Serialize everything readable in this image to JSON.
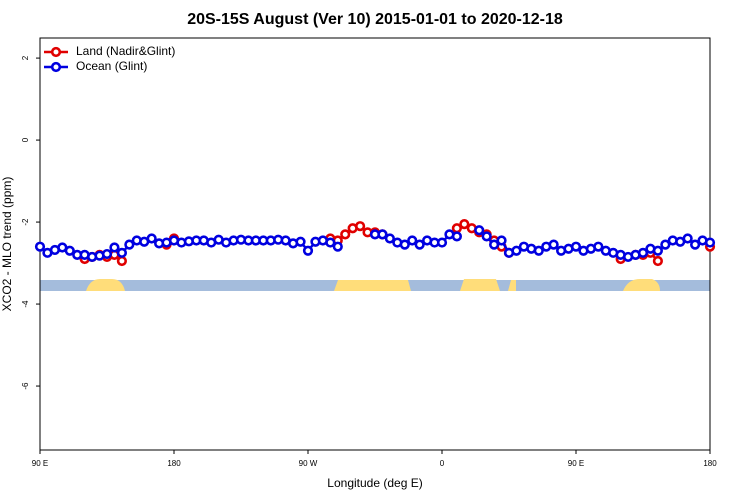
{
  "chart_data": {
    "type": "line",
    "title": "20S-15S August (Ver 10)   2015-01-01 to 2020-12-18",
    "xlabel": "Longitude (deg E)",
    "ylabel": "XCO2 - MLO trend (ppm)",
    "x": [
      90,
      95,
      100,
      105,
      110,
      115,
      120,
      125,
      130,
      135,
      140,
      145,
      150,
      155,
      160,
      165,
      170,
      175,
      180,
      185,
      190,
      195,
      200,
      205,
      210,
      215,
      220,
      225,
      230,
      235,
      240,
      245,
      250,
      255,
      260,
      265,
      270,
      275,
      280,
      285,
      290,
      295,
      300,
      305,
      310,
      315,
      320,
      325,
      330,
      335,
      340,
      345,
      350,
      355,
      360,
      365,
      370,
      375,
      380,
      385,
      390,
      395,
      400,
      405,
      410,
      415,
      420,
      425,
      430,
      435,
      440,
      445,
      450,
      455,
      460,
      465,
      470,
      475,
      480,
      485,
      490,
      495,
      500,
      505,
      510,
      515,
      520,
      525,
      530,
      535,
      540
    ],
    "series": [
      {
        "name": "Land (Nadir&Glint)",
        "color": "#e00000",
        "values": [
          null,
          null,
          null,
          null,
          null,
          null,
          -2.9,
          -2.85,
          -2.8,
          -2.85,
          -2.8,
          -2.95,
          null,
          null,
          null,
          null,
          null,
          -2.55,
          -2.4,
          null,
          null,
          null,
          null,
          null,
          null,
          null,
          null,
          null,
          null,
          null,
          null,
          null,
          null,
          null,
          null,
          null,
          null,
          null,
          null,
          -2.4,
          -2.45,
          -2.3,
          -2.15,
          -2.1,
          -2.25,
          -2.25,
          -2.3,
          null,
          null,
          null,
          null,
          null,
          null,
          null,
          null,
          null,
          -2.15,
          -2.05,
          -2.15,
          -2.25,
          -2.3,
          -2.45,
          -2.6,
          -2.75,
          null,
          null,
          null,
          null,
          null,
          null,
          null,
          null,
          null,
          null,
          null,
          null,
          null,
          null,
          -2.9,
          null,
          -2.8,
          -2.8,
          -2.75,
          -2.95,
          null,
          null,
          null,
          null,
          null,
          null,
          -2.6
        ]
      },
      {
        "name": "Ocean (Glint)",
        "color": "#0000e0",
        "values": [
          -2.6,
          -2.75,
          -2.68,
          -2.62,
          -2.7,
          -2.8,
          -2.8,
          -2.85,
          -2.82,
          -2.78,
          -2.62,
          -2.75,
          -2.55,
          -2.45,
          -2.48,
          -2.4,
          -2.52,
          -2.5,
          -2.45,
          -2.5,
          -2.47,
          -2.45,
          -2.45,
          -2.5,
          -2.43,
          -2.5,
          -2.45,
          -2.43,
          -2.45,
          -2.45,
          -2.45,
          -2.45,
          -2.43,
          -2.45,
          -2.52,
          -2.48,
          -2.7,
          -2.48,
          -2.45,
          -2.5,
          -2.6,
          null,
          null,
          null,
          null,
          -2.3,
          -2.3,
          -2.4,
          -2.5,
          -2.55,
          -2.45,
          -2.55,
          -2.45,
          -2.5,
          -2.5,
          -2.3,
          -2.35,
          null,
          null,
          -2.2,
          -2.35,
          -2.55,
          -2.45,
          -2.75,
          -2.7,
          -2.6,
          -2.65,
          -2.7,
          -2.6,
          -2.55,
          -2.7,
          -2.65,
          -2.6,
          -2.7,
          -2.65,
          -2.6,
          -2.7,
          -2.75,
          -2.8,
          -2.85,
          -2.8,
          -2.75,
          -2.65,
          -2.7,
          -2.55,
          -2.45,
          -2.48,
          -2.4,
          -2.55,
          -2.45,
          -2.5
        ]
      }
    ],
    "xlim": [
      90,
      540
    ],
    "xticks": [
      {
        "value": 90,
        "label": "90 E"
      },
      {
        "value": 180,
        "label": "180"
      },
      {
        "value": 270,
        "label": "90 W"
      },
      {
        "value": 360,
        "label": "0"
      },
      {
        "value": 450,
        "label": "90 E"
      },
      {
        "value": 540,
        "label": "180"
      }
    ],
    "ylim": [
      -7.56,
      2.49
    ],
    "yticks": [
      -6,
      -4,
      -2,
      0,
      2
    ],
    "legend": "top-left"
  }
}
